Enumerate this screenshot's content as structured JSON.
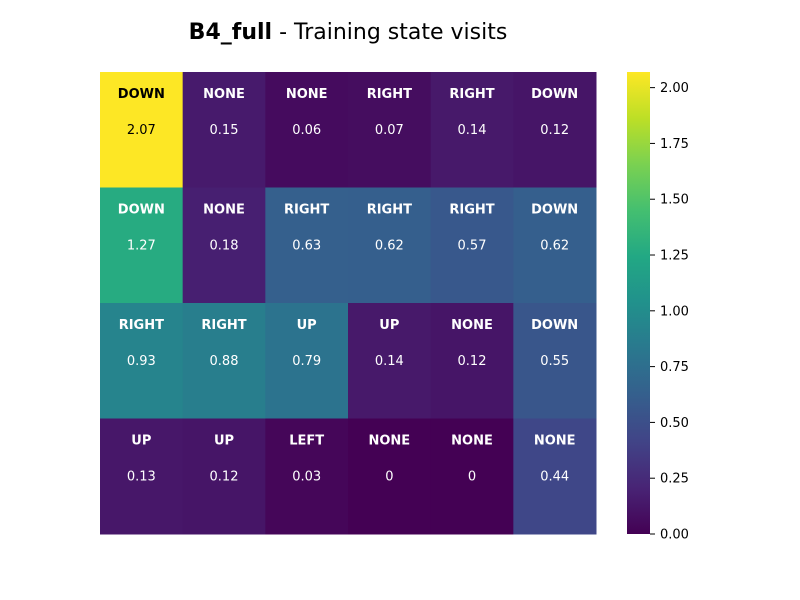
{
  "chart_data": {
    "type": "heatmap",
    "title_bold": "B4_full",
    "title_rest": " - Training state visits",
    "rows": 4,
    "cols": 6,
    "values": [
      [
        2.07,
        0.15,
        0.06,
        0.07,
        0.14,
        0.12
      ],
      [
        1.27,
        0.18,
        0.63,
        0.62,
        0.57,
        0.62
      ],
      [
        0.93,
        0.88,
        0.79,
        0.14,
        0.12,
        0.55
      ],
      [
        0.13,
        0.12,
        0.03,
        0,
        0,
        0.44
      ]
    ],
    "value_labels": [
      [
        "2.07",
        "0.15",
        "0.06",
        "0.07",
        "0.14",
        "0.12"
      ],
      [
        "1.27",
        "0.18",
        "0.63",
        "0.62",
        "0.57",
        "0.62"
      ],
      [
        "0.93",
        "0.88",
        "0.79",
        "0.14",
        "0.12",
        "0.55"
      ],
      [
        "0.13",
        "0.12",
        "0.03",
        "0",
        "0",
        "0.44"
      ]
    ],
    "actions": [
      [
        "DOWN",
        "NONE",
        "NONE",
        "RIGHT",
        "RIGHT",
        "DOWN"
      ],
      [
        "DOWN",
        "NONE",
        "RIGHT",
        "RIGHT",
        "RIGHT",
        "DOWN"
      ],
      [
        "RIGHT",
        "RIGHT",
        "UP",
        "UP",
        "NONE",
        "DOWN"
      ],
      [
        "UP",
        "UP",
        "LEFT",
        "NONE",
        "NONE",
        "NONE"
      ]
    ],
    "vmin": 0,
    "vmax": 2.07,
    "colormap": "viridis",
    "colorbar_ticks": [
      "0.00",
      "0.25",
      "0.50",
      "0.75",
      "1.00",
      "1.25",
      "1.50",
      "1.75",
      "2.00"
    ],
    "colorbar_tick_values": [
      0,
      0.25,
      0.5,
      0.75,
      1.0,
      1.25,
      1.5,
      1.75,
      2.0
    ]
  }
}
